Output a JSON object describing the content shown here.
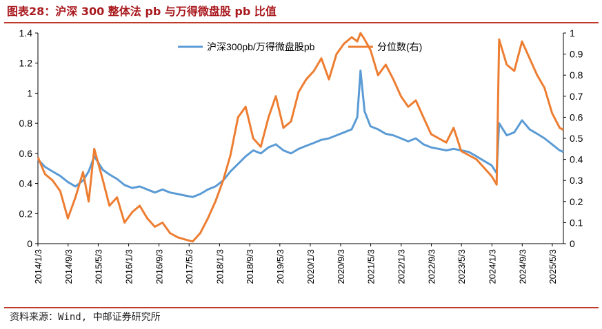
{
  "header": {
    "title": "图表28：沪深 300 整体法 pb 与万得微盘股 pb 比值"
  },
  "footer": {
    "source": "资料来源：Wind, 中邮证券研究所"
  },
  "colors": {
    "accent": "#a9191e",
    "series_blue": "#5b9bd5",
    "series_orange": "#ed7d31"
  },
  "chart_data": {
    "type": "line",
    "title": "",
    "legend_position": "top-center",
    "grid": false,
    "x_ticks": [
      "2014/1/3",
      "2014/9/3",
      "2015/5/3",
      "2016/1/3",
      "2016/9/3",
      "2017/5/3",
      "2018/1/3",
      "2018/9/3",
      "2019/5/3",
      "2020/1/3",
      "2020/9/3",
      "2021/5/3",
      "2022/1/3",
      "2022/9/3",
      "2023/5/3",
      "2024/1/3",
      "2024/9/3",
      "2025/5/3"
    ],
    "x_range": [
      "2014/1/3",
      "2025/7/31"
    ],
    "y_left": {
      "ylim": [
        0,
        1.4
      ],
      "ticks": [
        "0",
        "0.2",
        "0.4",
        "0.6",
        "0.8",
        "1",
        "1.2",
        "1.4"
      ]
    },
    "y_right": {
      "ylim": [
        0,
        1
      ],
      "ticks": [
        "0",
        "0.1",
        "0.2",
        "0.3",
        "0.4",
        "0.5",
        "0.6",
        "0.7",
        "0.8",
        "0.9",
        "1"
      ]
    },
    "series": [
      {
        "name": "沪深300pb/万得微盘股pb",
        "axis": "left",
        "x": [
          "2014/1/3",
          "2014/3/1",
          "2014/5/1",
          "2014/7/1",
          "2014/9/1",
          "2014/11/1",
          "2015/1/1",
          "2015/2/15",
          "2015/4/1",
          "2015/6/10",
          "2015/8/1",
          "2015/10/1",
          "2015/12/1",
          "2016/2/1",
          "2016/4/1",
          "2016/6/1",
          "2016/8/1",
          "2016/10/1",
          "2016/12/1",
          "2017/2/1",
          "2017/4/1",
          "2017/6/1",
          "2017/8/1",
          "2017/10/1",
          "2017/12/1",
          "2018/2/1",
          "2018/4/1",
          "2018/6/1",
          "2018/8/1",
          "2018/10/1",
          "2018/12/1",
          "2019/2/1",
          "2019/4/1",
          "2019/6/1",
          "2019/8/1",
          "2019/10/1",
          "2019/12/1",
          "2020/2/1",
          "2020/4/1",
          "2020/6/1",
          "2020/8/1",
          "2020/10/1",
          "2020/12/1",
          "2021/1/15",
          "2021/2/10",
          "2021/3/15",
          "2021/5/1",
          "2021/7/1",
          "2021/9/1",
          "2021/11/1",
          "2022/1/1",
          "2022/3/1",
          "2022/5/1",
          "2022/7/1",
          "2022/9/1",
          "2022/11/1",
          "2023/1/1",
          "2023/3/1",
          "2023/5/1",
          "2023/7/1",
          "2023/9/1",
          "2023/11/1",
          "2024/1/1",
          "2024/2/1",
          "2024/2/10",
          "2024/3/1",
          "2024/5/1",
          "2024/7/1",
          "2024/9/1",
          "2024/11/1",
          "2025/1/1",
          "2025/3/1",
          "2025/5/1",
          "2025/7/1",
          "2025/7/31"
        ],
        "values": [
          0.56,
          0.51,
          0.48,
          0.45,
          0.41,
          0.38,
          0.42,
          0.48,
          0.58,
          0.49,
          0.46,
          0.43,
          0.39,
          0.37,
          0.38,
          0.36,
          0.34,
          0.36,
          0.34,
          0.33,
          0.32,
          0.31,
          0.33,
          0.36,
          0.38,
          0.42,
          0.48,
          0.53,
          0.58,
          0.62,
          0.6,
          0.64,
          0.66,
          0.62,
          0.6,
          0.63,
          0.65,
          0.67,
          0.69,
          0.7,
          0.72,
          0.74,
          0.76,
          0.84,
          1.15,
          0.88,
          0.78,
          0.76,
          0.73,
          0.72,
          0.7,
          0.68,
          0.7,
          0.66,
          0.64,
          0.63,
          0.62,
          0.63,
          0.62,
          0.61,
          0.58,
          0.55,
          0.52,
          0.48,
          0.47,
          0.8,
          0.72,
          0.74,
          0.82,
          0.76,
          0.73,
          0.7,
          0.66,
          0.62,
          0.61
        ]
      },
      {
        "name": "分位数(右)",
        "axis": "right",
        "x": [
          "2014/1/3",
          "2014/3/1",
          "2014/5/1",
          "2014/7/1",
          "2014/9/1",
          "2014/11/1",
          "2015/1/1",
          "2015/2/15",
          "2015/4/1",
          "2015/6/10",
          "2015/8/1",
          "2015/10/1",
          "2015/12/1",
          "2016/2/1",
          "2016/4/1",
          "2016/6/1",
          "2016/8/1",
          "2016/10/1",
          "2016/12/1",
          "2017/2/1",
          "2017/4/1",
          "2017/6/1",
          "2017/8/1",
          "2017/10/1",
          "2017/12/1",
          "2018/2/1",
          "2018/4/1",
          "2018/6/1",
          "2018/8/1",
          "2018/10/1",
          "2018/12/1",
          "2019/2/1",
          "2019/4/1",
          "2019/6/1",
          "2019/8/1",
          "2019/10/1",
          "2019/12/1",
          "2020/2/1",
          "2020/4/1",
          "2020/6/1",
          "2020/8/1",
          "2020/10/1",
          "2020/12/1",
          "2021/1/15",
          "2021/2/10",
          "2021/3/15",
          "2021/5/1",
          "2021/7/1",
          "2021/9/1",
          "2021/11/1",
          "2022/1/1",
          "2022/3/1",
          "2022/5/1",
          "2022/7/1",
          "2022/9/1",
          "2022/11/1",
          "2023/1/1",
          "2023/3/1",
          "2023/5/1",
          "2023/7/1",
          "2023/9/1",
          "2023/11/1",
          "2024/1/1",
          "2024/2/1",
          "2024/2/10",
          "2024/3/1",
          "2024/5/1",
          "2024/7/1",
          "2024/9/1",
          "2024/11/1",
          "2025/1/1",
          "2025/3/1",
          "2025/5/1",
          "2025/7/1",
          "2025/7/31"
        ],
        "values": [
          0.41,
          0.33,
          0.3,
          0.25,
          0.12,
          0.22,
          0.34,
          0.2,
          0.45,
          0.3,
          0.18,
          0.22,
          0.1,
          0.15,
          0.18,
          0.12,
          0.08,
          0.1,
          0.05,
          0.03,
          0.02,
          0.01,
          0.05,
          0.12,
          0.2,
          0.3,
          0.42,
          0.6,
          0.65,
          0.5,
          0.46,
          0.6,
          0.7,
          0.55,
          0.58,
          0.72,
          0.78,
          0.82,
          0.88,
          0.78,
          0.9,
          0.95,
          0.98,
          0.96,
          1.0,
          0.97,
          0.92,
          0.8,
          0.85,
          0.78,
          0.7,
          0.65,
          0.68,
          0.6,
          0.52,
          0.5,
          0.48,
          0.55,
          0.44,
          0.42,
          0.4,
          0.36,
          0.32,
          0.29,
          0.28,
          0.97,
          0.85,
          0.82,
          0.96,
          0.88,
          0.8,
          0.74,
          0.62,
          0.55,
          0.54
        ]
      }
    ]
  }
}
